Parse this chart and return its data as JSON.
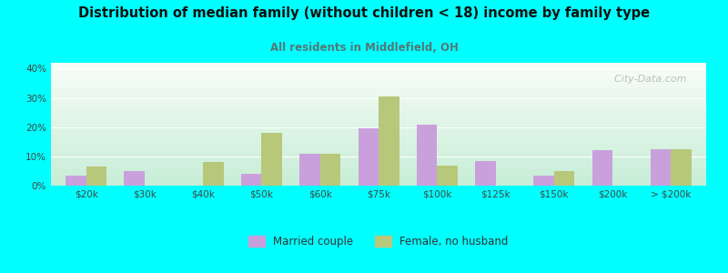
{
  "title": "Distribution of median family (without children < 18) income by family type",
  "subtitle": "All residents in Middlefield, OH",
  "categories": [
    "$20k",
    "$30k",
    "$40k",
    "$50k",
    "$60k",
    "$75k",
    "$100k",
    "$125k",
    "$150k",
    "$200k",
    "> $200k"
  ],
  "married_couple": [
    3.5,
    5.0,
    0,
    4.0,
    11.0,
    19.5,
    21.0,
    8.5,
    3.5,
    12.0,
    12.5
  ],
  "female_no_husband": [
    6.5,
    0,
    8.0,
    18.0,
    11.0,
    30.5,
    7.0,
    0,
    5.0,
    0,
    12.5
  ],
  "married_color": "#c9a0dc",
  "female_color": "#b8c87a",
  "background_color": "#00ffff",
  "title_color": "#111111",
  "subtitle_color": "#557777",
  "ylabel_values": [
    "0%",
    "10%",
    "20%",
    "30%",
    "40%"
  ],
  "ylim": [
    0,
    42
  ],
  "yticks": [
    0,
    10,
    20,
    30,
    40
  ],
  "bar_width": 0.35,
  "watermark": "  City-Data.com"
}
